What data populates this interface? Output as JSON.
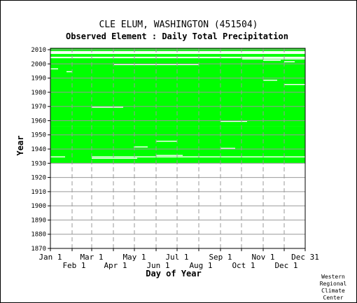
{
  "chart_data": {
    "type": "heatmap",
    "title": "CLE ELUM, WASHINGTON   (451504)",
    "subtitle": "Observed Element : Daily Total Precipitation",
    "xlabel": "Day of Year",
    "ylabel": "Year",
    "credit": [
      "Western",
      "Regional",
      "Climate",
      "Center"
    ],
    "x_ticks_upper": [
      {
        "label": "Jan 1",
        "day": 1
      },
      {
        "label": "Mar 1",
        "day": 60
      },
      {
        "label": "May 1",
        "day": 121
      },
      {
        "label": "Jul 1",
        "day": 182
      },
      {
        "label": "Sep 1",
        "day": 244
      },
      {
        "label": "Nov 1",
        "day": 305
      },
      {
        "label": "Dec 31",
        "day": 365
      }
    ],
    "x_ticks_lower": [
      {
        "label": "Feb 1",
        "day": 32
      },
      {
        "label": "Apr 1",
        "day": 91
      },
      {
        "label": "Jun 1",
        "day": 152
      },
      {
        "label": "Aug 1",
        "day": 213
      },
      {
        "label": "Oct 1",
        "day": 274
      },
      {
        "label": "Dec 1",
        "day": 335
      }
    ],
    "y_ticks": [
      1870,
      1880,
      1890,
      1900,
      1910,
      1920,
      1930,
      1940,
      1950,
      1960,
      1970,
      1980,
      1990,
      2000,
      2010
    ],
    "xlim": [
      1,
      365
    ],
    "ylim": [
      1870,
      2011
    ],
    "data_color": "#00ff00",
    "grid": true,
    "observed_blocks": [
      {
        "year_start": 1930,
        "year_end": 1955,
        "day_start": 1,
        "day_end": 365
      },
      {
        "year_start": 1956,
        "year_end": 2003,
        "day_start": 1,
        "day_end": 365
      },
      {
        "year_start": 2005,
        "year_end": 2006,
        "day_start": 1,
        "day_end": 365
      },
      {
        "year_start": 2009,
        "year_end": 2011,
        "day_start": 1,
        "day_end": 365
      }
    ],
    "missing_segments": [
      {
        "year": 1934,
        "day_start": 1,
        "day_end": 22
      },
      {
        "year": 1934,
        "day_start": 60,
        "day_end": 365
      },
      {
        "year": 1933,
        "day_start": 60,
        "day_end": 125
      },
      {
        "year": 1935,
        "day_start": 152,
        "day_end": 190
      },
      {
        "year": 1945,
        "day_start": 152,
        "day_end": 182
      },
      {
        "year": 1941,
        "day_start": 120,
        "day_end": 140
      },
      {
        "year": 1940,
        "day_start": 244,
        "day_end": 265
      },
      {
        "year": 1959,
        "day_start": 244,
        "day_end": 282
      },
      {
        "year": 1969,
        "day_start": 60,
        "day_end": 105
      },
      {
        "year": 1988,
        "day_start": 305,
        "day_end": 325
      },
      {
        "year": 1985,
        "day_start": 335,
        "day_end": 365
      },
      {
        "year": 1999,
        "day_start": 92,
        "day_end": 213
      },
      {
        "year": 2001,
        "day_start": 335,
        "day_end": 350
      },
      {
        "year": 2002,
        "day_start": 305,
        "day_end": 330
      },
      {
        "year": 2003,
        "day_start": 275,
        "day_end": 365
      },
      {
        "year": 1996,
        "day_start": 1,
        "day_end": 12
      },
      {
        "year": 1994,
        "day_start": 24,
        "day_end": 32
      }
    ]
  }
}
